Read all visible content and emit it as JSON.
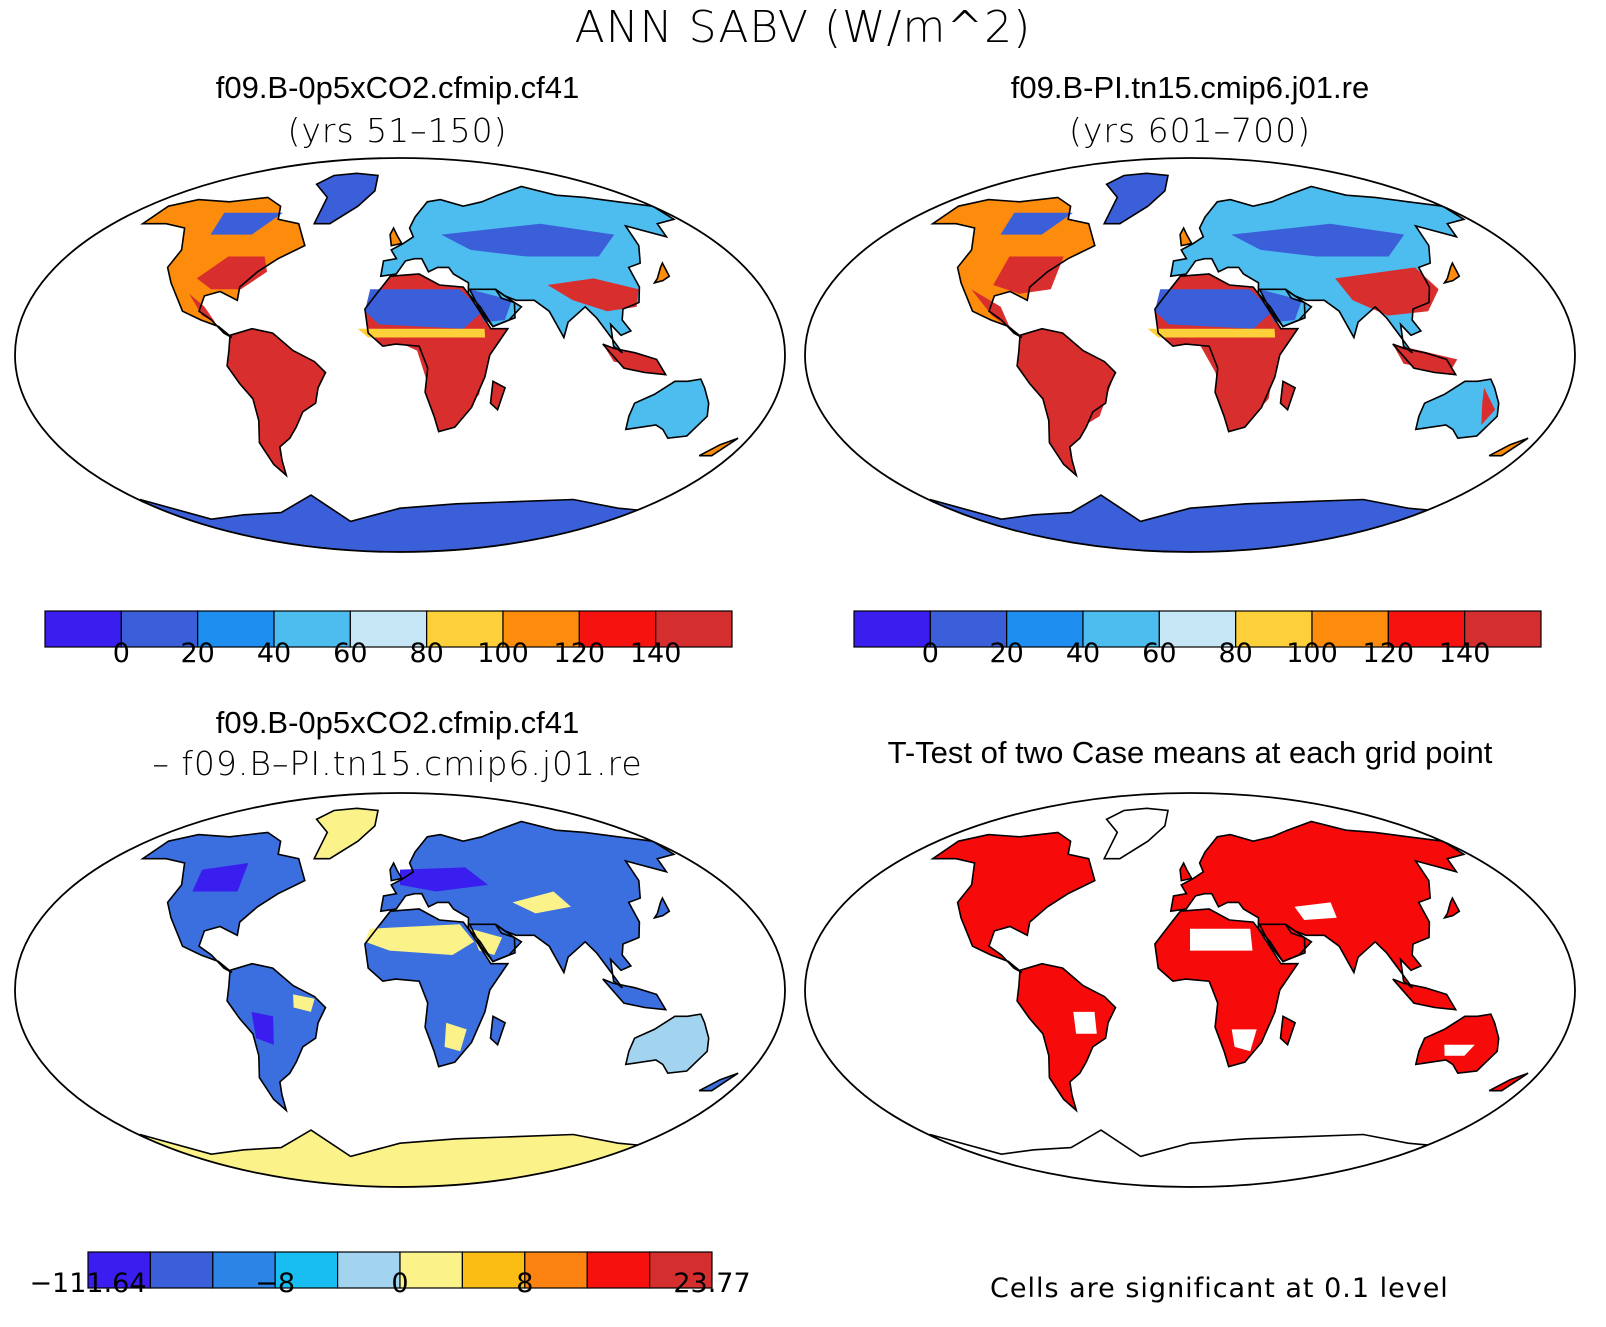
{
  "main_title": "ANN SABV (W/m^2)",
  "panels": {
    "top_left": {
      "title": "f09.B-0p5xCO2.cfmip.cf41",
      "subtitle": "(yrs 51–150)"
    },
    "top_right": {
      "title": "f09.B-PI.tn15.cmip6.j01.re",
      "subtitle": "(yrs 601–700)"
    },
    "bottom_left": {
      "title": "f09.B-0p5xCO2.cfmip.cf41",
      "subtitle": "– f09.B–PI.tn15.cmip6.j01.re"
    },
    "bottom_right": {
      "title": "T-Test of two Case means at each grid point",
      "note": "Cells are significant at 0.1 level"
    }
  },
  "colorbars": {
    "case": {
      "colors": [
        "#3a1ef0",
        "#3b5fd8",
        "#1e8ef0",
        "#4dbdf0",
        "#c6e6f6",
        "#fdd03a",
        "#fd8c0c",
        "#f6120e",
        "#d42e2e"
      ],
      "labels": [
        "0",
        "20",
        "40",
        "60",
        "80",
        "100",
        "120",
        "140"
      ]
    },
    "diff": {
      "colors": [
        "#3a1ef0",
        "#3b5fd8",
        "#2b84e6",
        "#18bdf2",
        "#a2d4ef",
        "#fbf28a",
        "#fbbd13",
        "#fc8311",
        "#f6100e",
        "#d42e2e"
      ],
      "labels": [
        "−111.64",
        "−8",
        "0",
        "8",
        "23.77"
      ]
    }
  },
  "maps": {
    "projection": "Robinson",
    "land_hot_color": "#d82e2e",
    "land_cold_color": "#3b5fd8",
    "diff_land_color": "#3b6fe0",
    "diff_positive_color": "#fbf28a",
    "significance_color": "#f60a0a"
  }
}
